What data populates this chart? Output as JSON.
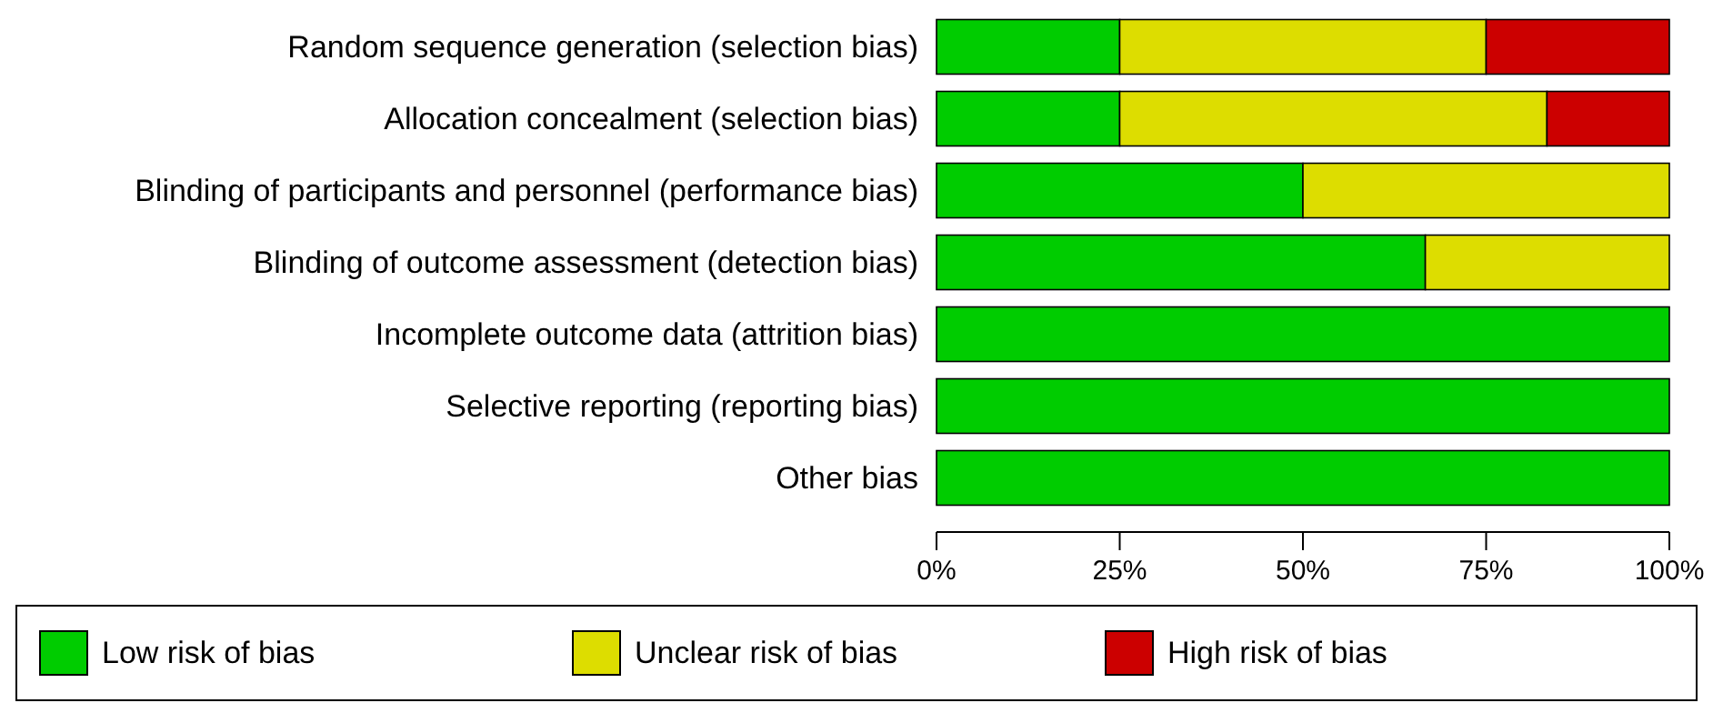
{
  "chart_data": {
    "type": "bar",
    "orientation": "horizontal",
    "stacked": true,
    "categories": [
      "Random sequence generation (selection bias)",
      "Allocation concealment (selection bias)",
      "Blinding of participants and personnel (performance bias)",
      "Blinding of outcome assessment (detection bias)",
      "Incomplete outcome data (attrition bias)",
      "Selective reporting (reporting bias)",
      "Other bias"
    ],
    "series": [
      {
        "name": "Low risk of bias",
        "color": "#00cc00",
        "values": [
          25,
          25,
          50,
          66.7,
          100,
          100,
          100
        ]
      },
      {
        "name": "Unclear risk of bias",
        "color": "#dddd00",
        "values": [
          50,
          58.3,
          50,
          33.3,
          0,
          0,
          0
        ]
      },
      {
        "name": "High risk of bias",
        "color": "#cc0000",
        "values": [
          25,
          16.7,
          0,
          0,
          0,
          0,
          0
        ]
      }
    ],
    "xlim": [
      0,
      100
    ],
    "xticks": [
      {
        "value": 0,
        "label": "0%"
      },
      {
        "value": 25,
        "label": "25%"
      },
      {
        "value": 50,
        "label": "50%"
      },
      {
        "value": 75,
        "label": "75%"
      },
      {
        "value": 100,
        "label": "100%"
      }
    ],
    "legend": "bottom",
    "grid": false
  }
}
